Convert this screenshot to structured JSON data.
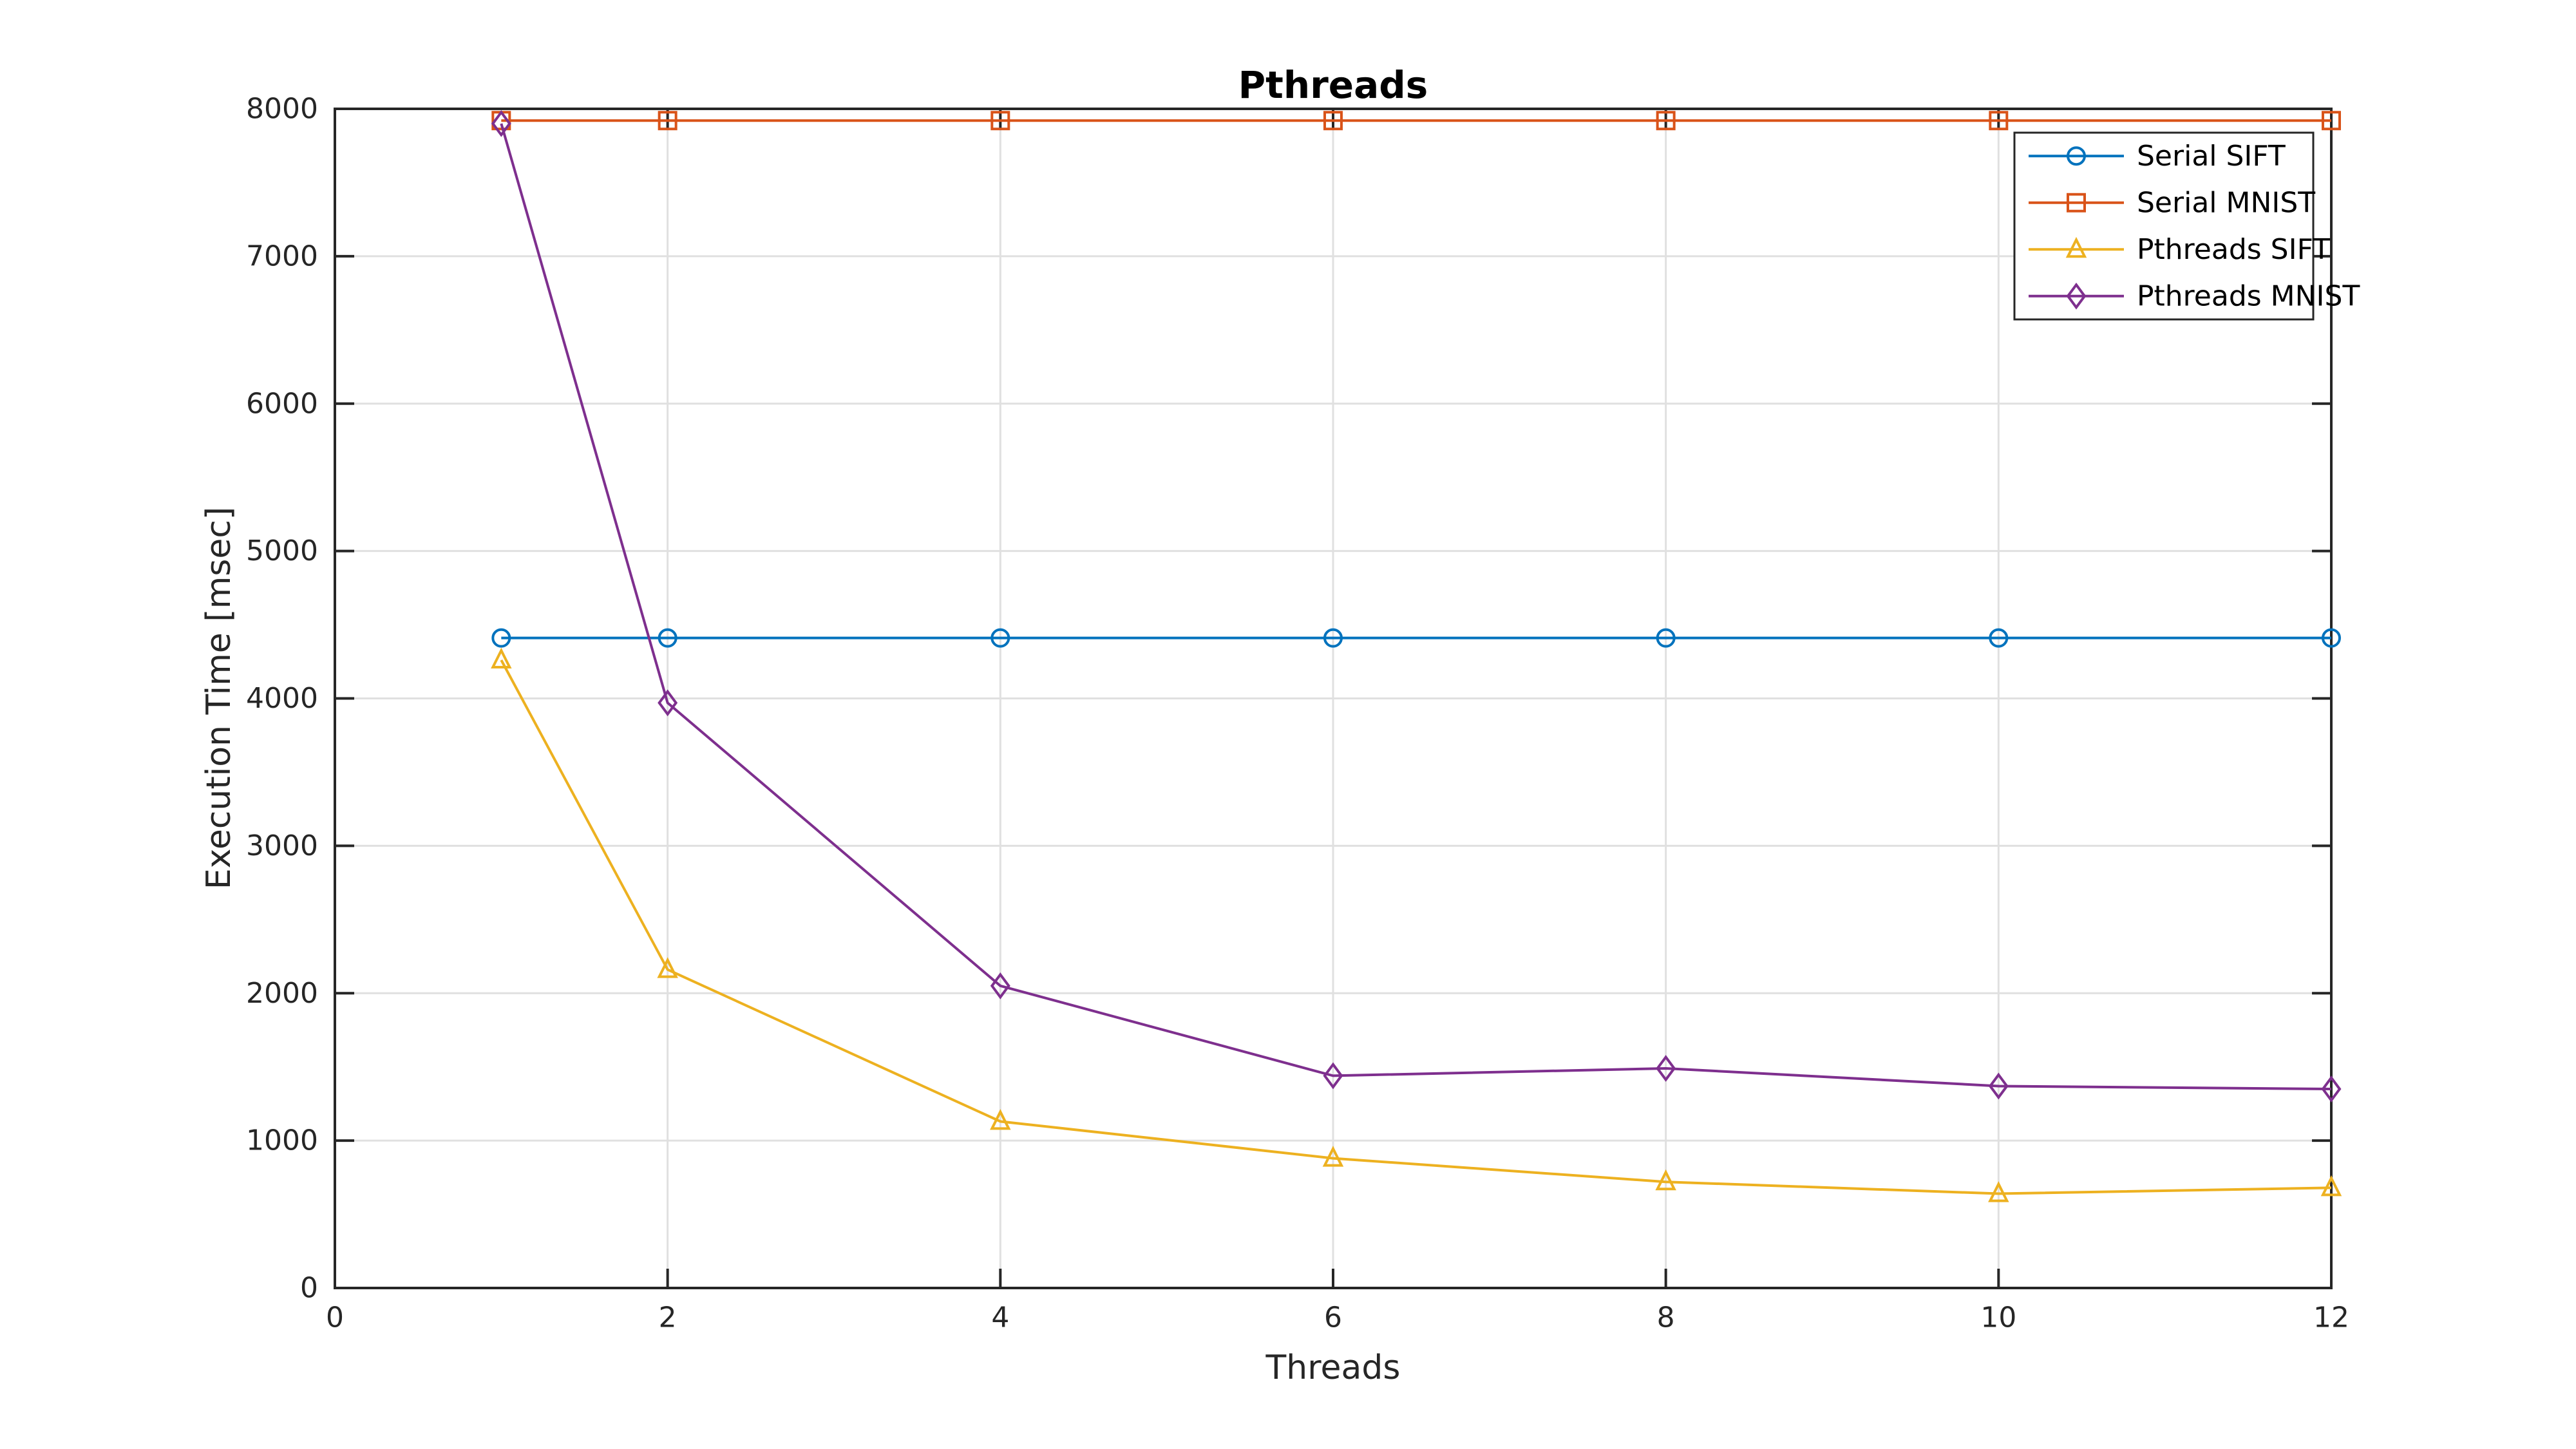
{
  "figure": {
    "title": "Pthreads",
    "xlabel": "Threads",
    "ylabel": "Execution Time [msec]",
    "background": "#ffffff",
    "axis_color": "#262626",
    "grid_color": "#e0e0e0"
  },
  "legend": {
    "position": "top-right",
    "border_color": "#262626",
    "items": [
      "Serial SIFT",
      "Serial MNIST",
      "Pthreads SIFT",
      "Pthreads MNIST"
    ]
  },
  "chart_data": {
    "type": "line",
    "title": "Pthreads",
    "xlabel": "Threads",
    "ylabel": "Execution Time [msec]",
    "x": [
      1,
      2,
      4,
      6,
      8,
      10,
      12
    ],
    "xlim": [
      0,
      12
    ],
    "ylim": [
      0,
      8000
    ],
    "xticks": [
      0,
      2,
      4,
      6,
      8,
      10,
      12
    ],
    "yticks": [
      0,
      1000,
      2000,
      3000,
      4000,
      5000,
      6000,
      7000,
      8000
    ],
    "grid": true,
    "legend_position": "top-right",
    "series": [
      {
        "name": "Serial SIFT",
        "color": "#0072BD",
        "marker": "circle",
        "values": [
          4410,
          4410,
          4410,
          4410,
          4410,
          4410,
          4410
        ]
      },
      {
        "name": "Serial MNIST",
        "color": "#D95319",
        "marker": "square",
        "values": [
          7920,
          7920,
          7920,
          7920,
          7920,
          7920,
          7920
        ]
      },
      {
        "name": "Pthreads SIFT",
        "color": "#EDB120",
        "marker": "triangle",
        "values": [
          4260,
          2160,
          1130,
          880,
          720,
          640,
          680
        ]
      },
      {
        "name": "Pthreads MNIST",
        "color": "#7E2F8E",
        "marker": "diamond",
        "values": [
          7900,
          3970,
          2050,
          1440,
          1490,
          1370,
          1350
        ]
      }
    ]
  }
}
